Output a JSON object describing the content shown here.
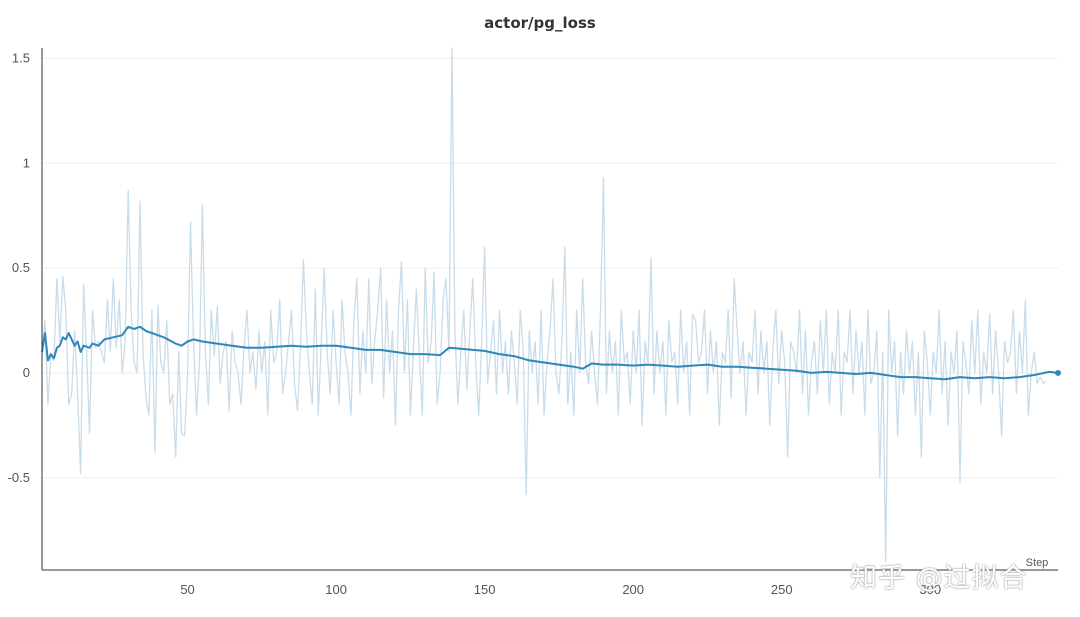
{
  "chart_data": {
    "type": "line",
    "title": "actor/pg_loss",
    "xlabel": "Step",
    "ylabel": "",
    "xlim": [
      1,
      343
    ],
    "ylim": [
      -0.94,
      1.55
    ],
    "x_ticks": [
      50,
      100,
      150,
      200,
      250,
      300
    ],
    "y_ticks": [
      -0.5,
      0,
      0.5,
      1,
      1.5
    ],
    "y_tick_labels": [
      "-0.5",
      "0",
      "0.5",
      "1",
      "1.5"
    ],
    "grid": true,
    "legend": "none",
    "colors": {
      "raw": "#c9dcea",
      "smoothed": "#2f86b8",
      "grid": "#eeeeee",
      "axis": "#333333"
    },
    "series": [
      {
        "role": "raw",
        "x_start": 1,
        "x_step": 1,
        "values": [
          0.12,
          0.25,
          -0.15,
          0.09,
          0.06,
          0.45,
          0.15,
          0.46,
          0.3,
          -0.15,
          -0.1,
          0.2,
          -0.1,
          -0.48,
          0.42,
          0.1,
          -0.29,
          0.3,
          0.12,
          0.15,
          0.1,
          0.05,
          0.35,
          0.1,
          0.45,
          0.12,
          0.35,
          0.0,
          0.15,
          0.87,
          0.3,
          0.05,
          0.0,
          0.82,
          0.1,
          -0.12,
          -0.2,
          0.3,
          -0.38,
          0.32,
          0.05,
          0.0,
          0.25,
          -0.15,
          -0.1,
          -0.4,
          0.1,
          -0.29,
          -0.3,
          0.0,
          0.72,
          0.15,
          -0.2,
          0.05,
          0.8,
          0.1,
          -0.15,
          0.3,
          0.08,
          0.32,
          -0.05,
          0.1,
          0.15,
          -0.18,
          0.2,
          0.05,
          0.0,
          -0.15,
          0.12,
          0.3,
          0.0,
          0.1,
          -0.08,
          0.2,
          0.0,
          0.15,
          -0.2,
          0.3,
          0.05,
          0.1,
          0.35,
          -0.1,
          0.0,
          0.15,
          0.3,
          -0.05,
          -0.18,
          0.12,
          0.54,
          0.2,
          0.0,
          -0.15,
          0.4,
          -0.2,
          0.15,
          0.5,
          0.1,
          -0.1,
          0.3,
          0.05,
          -0.15,
          0.35,
          0.1,
          0.0,
          -0.2,
          0.25,
          0.45,
          -0.1,
          0.2,
          0.0,
          0.45,
          -0.05,
          0.15,
          0.3,
          0.5,
          -0.12,
          0.35,
          0.0,
          0.2,
          -0.25,
          0.3,
          0.53,
          0.0,
          0.35,
          -0.2,
          0.1,
          0.4,
          0.1,
          -0.2,
          0.5,
          0.05,
          0.15,
          0.48,
          -0.15,
          0.0,
          0.35,
          0.45,
          0.1,
          1.55,
          0.2,
          -0.15,
          0.1,
          0.3,
          -0.08,
          0.2,
          0.45,
          0.05,
          -0.2,
          0.15,
          0.6,
          -0.05,
          0.1,
          0.25,
          -0.1,
          0.3,
          0.0,
          0.15,
          -0.1,
          0.2,
          0.05,
          -0.15,
          0.3,
          0.1,
          -0.58,
          0.2,
          0.0,
          0.15,
          -0.15,
          0.3,
          -0.2,
          0.05,
          0.2,
          0.45,
          0.0,
          -0.1,
          0.15,
          0.6,
          -0.15,
          0.1,
          -0.2,
          0.3,
          0.0,
          0.45,
          0.05,
          -0.05,
          0.2,
          0.0,
          -0.15,
          0.3,
          0.93,
          -0.1,
          0.2,
          0.0,
          0.15,
          -0.2,
          0.3,
          0.05,
          0.1,
          -0.15,
          0.2,
          0.0,
          0.3,
          -0.25,
          0.15,
          0.05,
          0.55,
          -0.1,
          0.2,
          0.0,
          0.15,
          -0.2,
          0.25,
          0.05,
          0.1,
          -0.15,
          0.3,
          0.0,
          0.15,
          -0.2,
          0.28,
          0.25,
          0.05,
          0.1,
          0.3,
          -0.1,
          0.2,
          0.0,
          0.15,
          -0.25,
          0.1,
          0.05,
          0.3,
          -0.12,
          0.45,
          0.2,
          0.0,
          0.15,
          -0.2,
          0.1,
          0.05,
          0.3,
          -0.1,
          0.2,
          0.0,
          0.15,
          -0.25,
          0.1,
          0.3,
          -0.05,
          0.2,
          0.05,
          -0.4,
          0.15,
          0.1,
          0.0,
          0.3,
          -0.1,
          0.2,
          -0.2,
          0.05,
          0.15,
          -0.1,
          0.25,
          0.0,
          0.3,
          -0.15,
          0.1,
          0.0,
          0.3,
          -0.2,
          0.1,
          0.05,
          0.3,
          -0.1,
          0.2,
          0.0,
          0.15,
          -0.2,
          0.3,
          -0.05,
          0.0,
          0.2,
          -0.5,
          0.1,
          -0.9,
          0.3,
          0.0,
          0.15,
          -0.3,
          0.1,
          -0.1,
          0.2,
          0.0,
          0.15,
          -0.2,
          0.1,
          -0.4,
          0.2,
          0.05,
          -0.2,
          0.1,
          0.0,
          0.3,
          -0.1,
          0.15,
          -0.25,
          0.1,
          0.0,
          0.2,
          -0.52,
          0.15,
          0.05,
          -0.1,
          0.25,
          0.0,
          0.3,
          -0.15,
          0.1,
          0.0,
          0.28,
          -0.1,
          0.2,
          0.0,
          -0.3,
          0.15,
          0.05,
          0.1,
          0.3,
          -0.1,
          0.2,
          0.0,
          0.35,
          -0.2,
          0.0,
          0.1,
          -0.05,
          -0.02,
          -0.05,
          -0.04
        ]
      },
      {
        "role": "smoothed",
        "x": [
          1,
          2,
          3,
          4,
          5,
          6,
          7,
          8,
          9,
          10,
          12,
          13,
          14,
          15,
          17,
          18,
          20,
          22,
          25,
          28,
          30,
          32,
          34,
          36,
          38,
          42,
          46,
          48,
          50,
          52,
          55,
          60,
          65,
          70,
          75,
          80,
          85,
          90,
          95,
          100,
          105,
          110,
          115,
          120,
          125,
          130,
          135,
          138,
          142,
          146,
          150,
          155,
          160,
          165,
          170,
          175,
          180,
          183,
          186,
          190,
          195,
          200,
          205,
          210,
          215,
          220,
          225,
          230,
          235,
          240,
          245,
          250,
          255,
          260,
          265,
          270,
          275,
          280,
          285,
          290,
          295,
          300,
          305,
          310,
          315,
          320,
          325,
          330,
          335,
          340,
          343
        ],
        "values": [
          0.1,
          0.19,
          0.06,
          0.09,
          0.07,
          0.12,
          0.13,
          0.17,
          0.16,
          0.19,
          0.13,
          0.15,
          0.1,
          0.13,
          0.12,
          0.14,
          0.13,
          0.16,
          0.17,
          0.18,
          0.22,
          0.21,
          0.22,
          0.2,
          0.19,
          0.17,
          0.14,
          0.13,
          0.15,
          0.16,
          0.15,
          0.14,
          0.13,
          0.12,
          0.12,
          0.125,
          0.13,
          0.125,
          0.13,
          0.13,
          0.12,
          0.11,
          0.11,
          0.1,
          0.09,
          0.09,
          0.085,
          0.12,
          0.115,
          0.11,
          0.105,
          0.09,
          0.08,
          0.06,
          0.05,
          0.04,
          0.03,
          0.02,
          0.045,
          0.04,
          0.04,
          0.035,
          0.04,
          0.035,
          0.03,
          0.035,
          0.04,
          0.03,
          0.03,
          0.025,
          0.02,
          0.015,
          0.01,
          0.0,
          0.005,
          0.0,
          -0.005,
          0.0,
          -0.01,
          -0.02,
          -0.02,
          -0.025,
          -0.03,
          -0.02,
          -0.025,
          -0.02,
          -0.025,
          -0.02,
          -0.01,
          0.005,
          0.0
        ]
      }
    ]
  },
  "watermark": "知乎 @过拟合"
}
